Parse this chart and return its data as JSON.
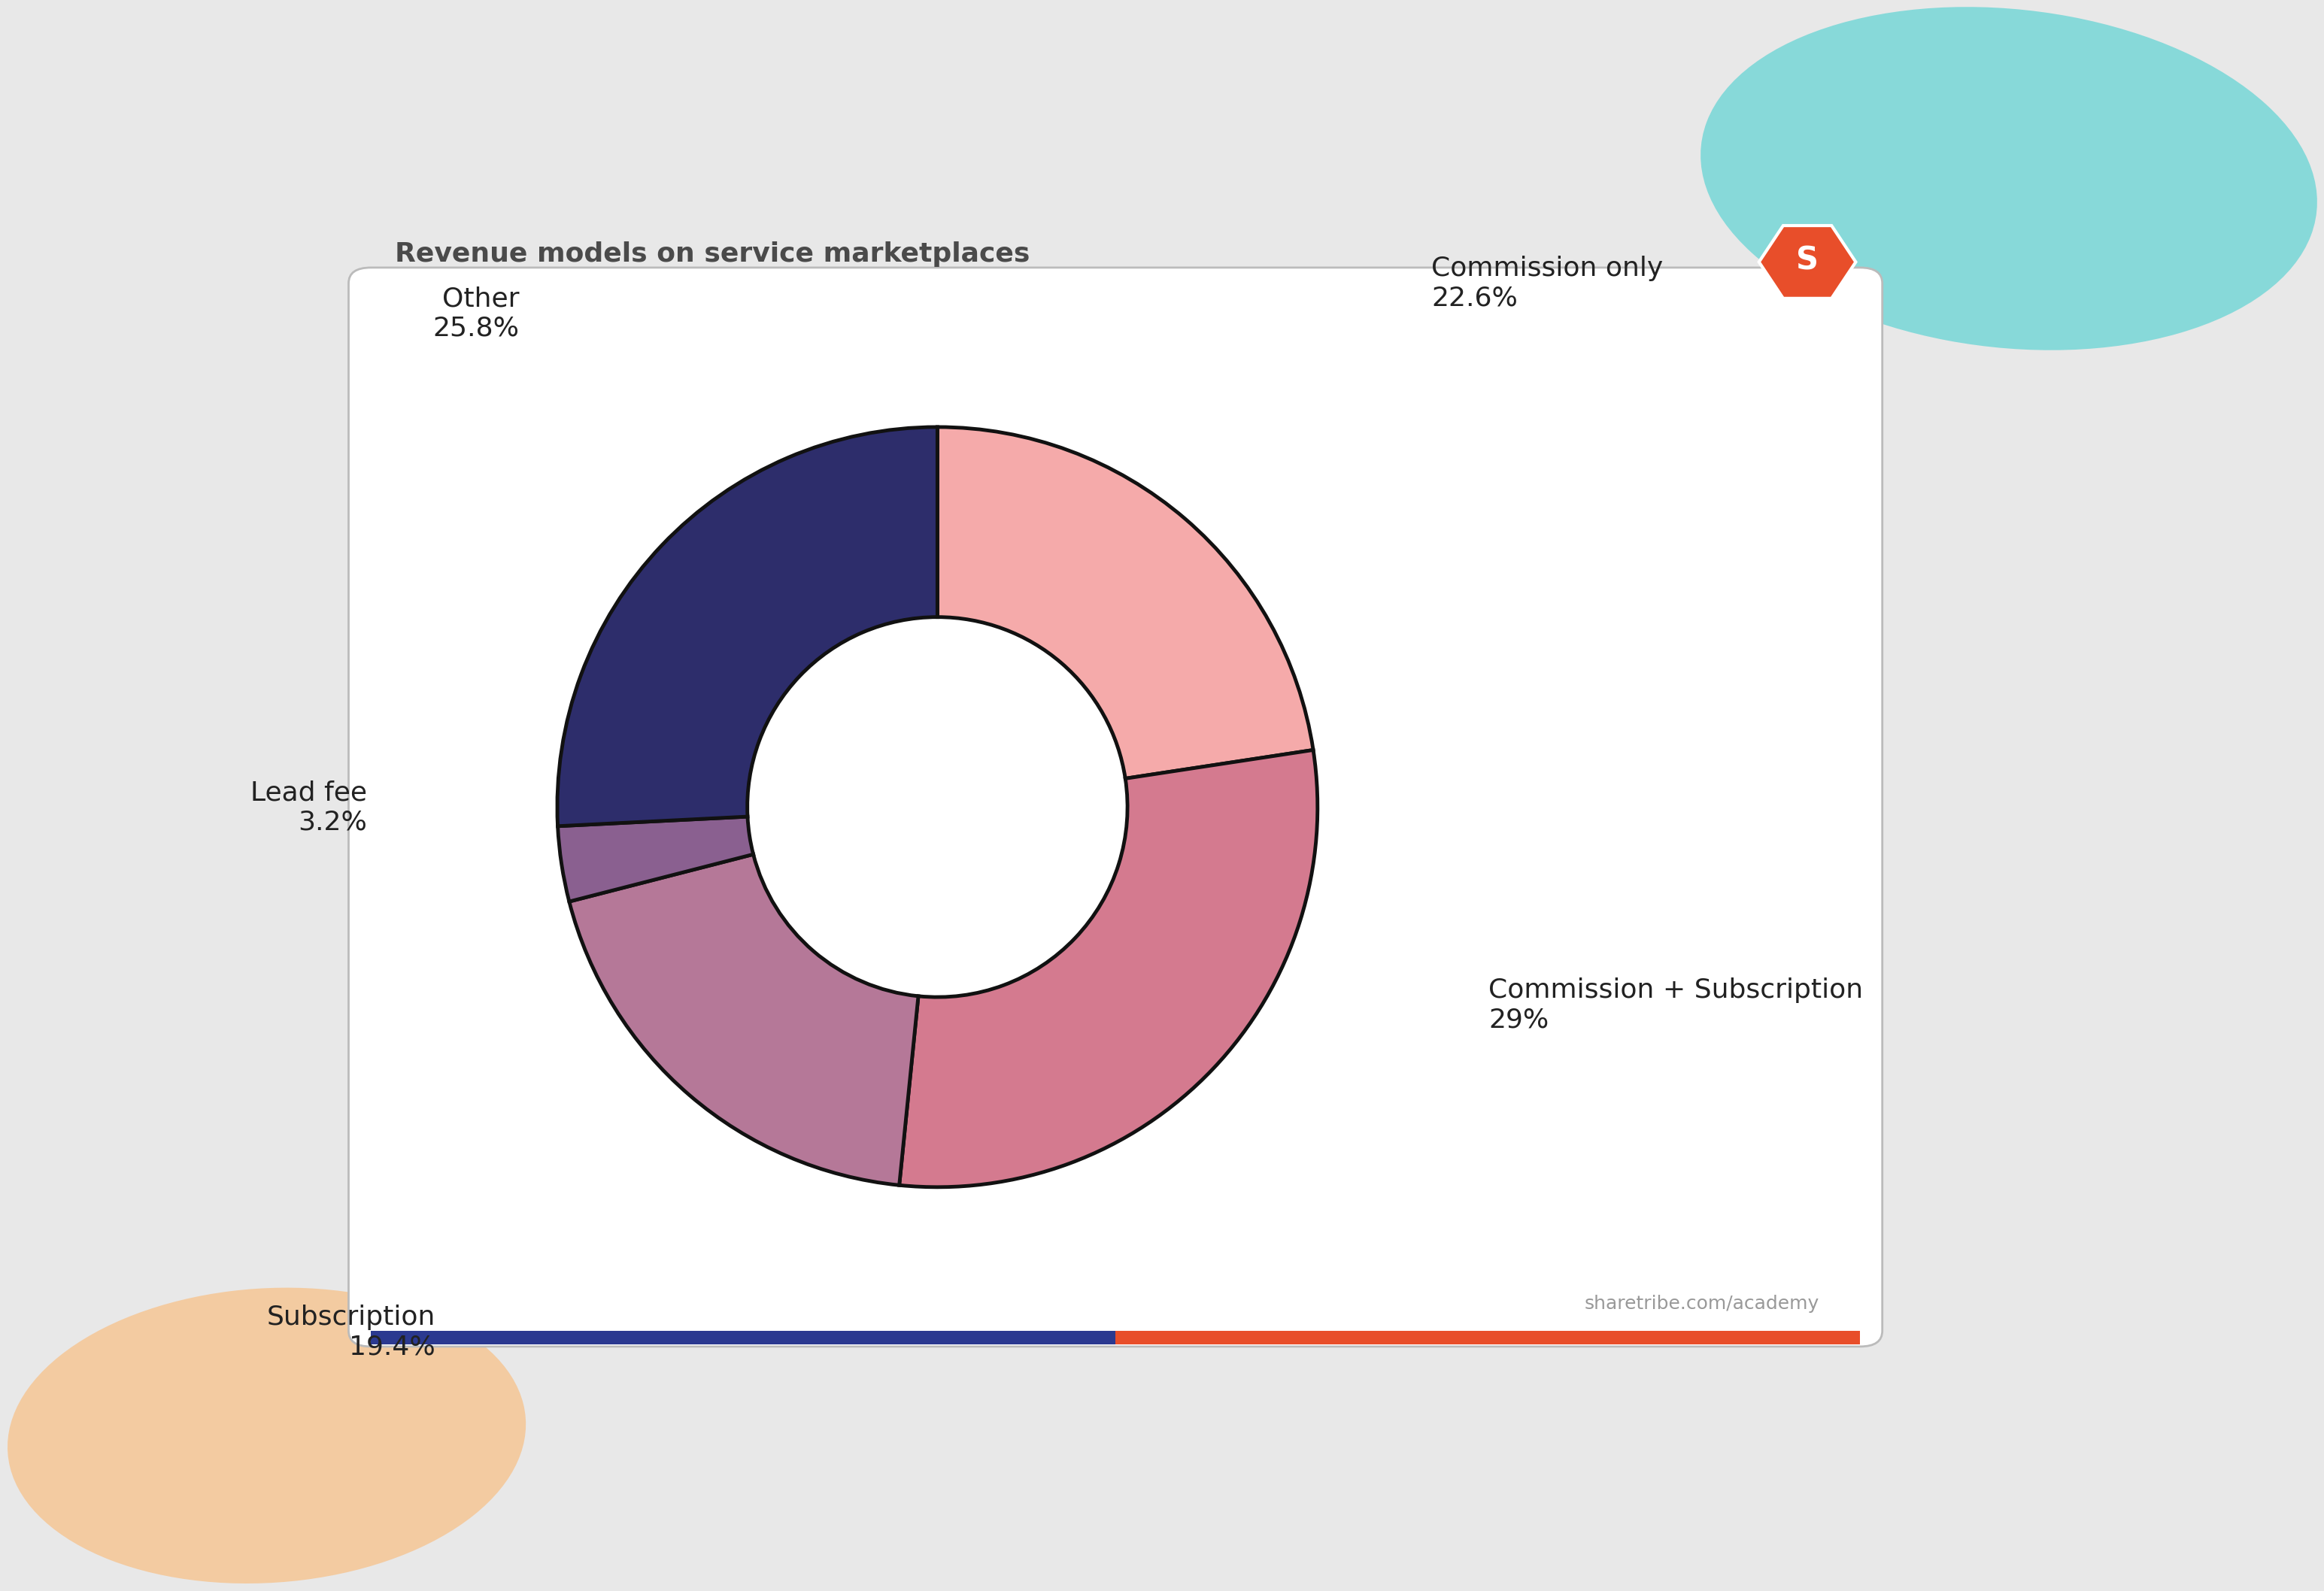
{
  "title": "Revenue models on service marketplaces",
  "title_color": "#4a4a4a",
  "footer_text": "sharetribe.com/academy",
  "segments": [
    {
      "label": "Commission only",
      "pct_label": "22.6%",
      "value": 22.6,
      "color": "#f5aaaa"
    },
    {
      "label": "Commission + Subscription",
      "pct_label": "29%",
      "value": 29.0,
      "color": "#d47a8f"
    },
    {
      "label": "Subscription",
      "pct_label": "19.4%",
      "value": 19.4,
      "color": "#b57898"
    },
    {
      "label": "Lead fee",
      "pct_label": "3.2%",
      "value": 3.2,
      "color": "#8a6090"
    },
    {
      "label": "Other",
      "pct_label": "25.8%",
      "value": 25.8,
      "color": "#2d2d6b"
    }
  ],
  "donut_hole": 0.5,
  "wedge_edge_color": "#111111",
  "wedge_edge_width": 3.5,
  "bg_outer": "#e8e8e8",
  "bg_card": "#ffffff",
  "blob_teal_color": "#7dd8d8",
  "blob_peach_color": "#f5c89a",
  "label_font_size": 26,
  "title_font_size": 26,
  "footer_font_size": 18,
  "start_angle": 90
}
